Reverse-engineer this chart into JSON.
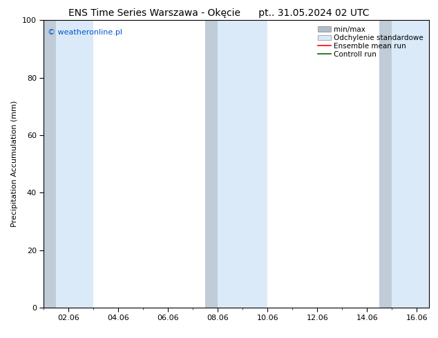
{
  "title_left": "ENS Time Series Warszawa - Okęcie",
  "title_right": "pt.. 31.05.2024 02 UTC",
  "ylabel": "Precipitation Accumulation (mm)",
  "watermark": "© weatheronline.pl",
  "watermark_color": "#0055cc",
  "ylim": [
    0,
    100
  ],
  "yticks": [
    0,
    20,
    40,
    60,
    80,
    100
  ],
  "xlim": [
    1,
    16.5
  ],
  "xtick_labels": [
    "02.06",
    "04.06",
    "06.06",
    "08.06",
    "10.06",
    "12.06",
    "14.06",
    "16.06"
  ],
  "xtick_positions": [
    2,
    4,
    6,
    8,
    10,
    12,
    14,
    16
  ],
  "background_color": "#ffffff",
  "plot_bg_color": "#ffffff",
  "shaded_regions_minmax": [
    {
      "x_start": 1.0,
      "x_end": 1.5
    },
    {
      "x_start": 7.5,
      "x_end": 8.0
    },
    {
      "x_start": 14.5,
      "x_end": 15.0
    }
  ],
  "shaded_regions_std": [
    {
      "x_start": 1.5,
      "x_end": 3.0
    },
    {
      "x_start": 8.0,
      "x_end": 10.0
    },
    {
      "x_start": 15.0,
      "x_end": 16.5
    }
  ],
  "color_minmax": "#c0ccd8",
  "color_std": "#daeaf8",
  "legend_entries": [
    {
      "label": "min/max",
      "color": "#b0bcc8",
      "type": "fill"
    },
    {
      "label": "Odchylenie standardowe",
      "color": "#daeaf8",
      "type": "fill"
    },
    {
      "label": "Ensemble mean run",
      "color": "#ff0000",
      "type": "line"
    },
    {
      "label": "Controll run",
      "color": "#006600",
      "type": "line"
    }
  ],
  "title_fontsize": 10,
  "ylabel_fontsize": 8,
  "tick_fontsize": 8,
  "legend_fontsize": 7.5,
  "watermark_fontsize": 8
}
